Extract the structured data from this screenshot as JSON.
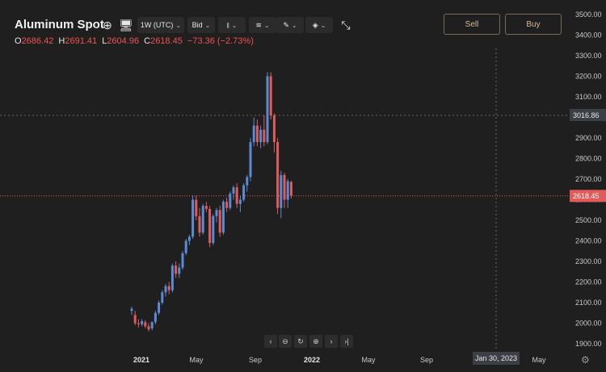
{
  "header": {
    "title": "Aluminum Spot",
    "interval_label": "1W (UTC)",
    "price_side_label": "Bid",
    "sell_label": "Sell",
    "buy_label": "Buy"
  },
  "ohlc": {
    "o_label": "O",
    "o_value": "2686.42",
    "h_label": "H",
    "h_value": "2691.41",
    "l_label": "L",
    "l_value": "2604.96",
    "c_label": "C",
    "c_value": "2618.45",
    "change": "−73.36 (−2.73%)"
  },
  "colors": {
    "up": "#5b8ad6",
    "down": "#e15b5b",
    "background": "#1f1f1f",
    "price_line": "#e15b5b"
  },
  "chart_data": {
    "type": "candlestick",
    "title": "Aluminum Spot",
    "y_axis": {
      "ticks": [
        "3500.00",
        "3400.00",
        "3300.00",
        "3200.00",
        "3100.00",
        "3000.00",
        "2900.00",
        "2800.00",
        "2700.00",
        "2600.00",
        "2500.00",
        "2400.00",
        "2300.00",
        "2200.00",
        "2100.00",
        "2000.00",
        "1900.00"
      ],
      "range": [
        1870,
        3550
      ],
      "position": "right"
    },
    "x_axis": {
      "ticks": [
        {
          "label": "2021",
          "bold": true
        },
        {
          "label": "May",
          "bold": false
        },
        {
          "label": "Sep",
          "bold": false
        },
        {
          "label": "2022",
          "bold": true
        },
        {
          "label": "May",
          "bold": false
        },
        {
          "label": "Sep",
          "bold": false
        },
        {
          "label": "May",
          "bold": false
        }
      ]
    },
    "crosshair": {
      "price_label": "3016.86",
      "date_label": "Jan 30, 2023"
    },
    "last_price_label": "2618.45",
    "grid": false,
    "candles": [
      {
        "o": 2060,
        "h": 2080,
        "l": 2040,
        "c": 2070
      },
      {
        "o": 2040,
        "h": 2060,
        "l": 1990,
        "c": 2000
      },
      {
        "o": 2000,
        "h": 2020,
        "l": 1980,
        "c": 1995
      },
      {
        "o": 1995,
        "h": 2020,
        "l": 1985,
        "c": 2010
      },
      {
        "o": 2005,
        "h": 2015,
        "l": 1975,
        "c": 1985
      },
      {
        "o": 1985,
        "h": 2000,
        "l": 1960,
        "c": 1970
      },
      {
        "o": 1975,
        "h": 2010,
        "l": 1965,
        "c": 2005
      },
      {
        "o": 2005,
        "h": 2060,
        "l": 1995,
        "c": 2050
      },
      {
        "o": 2050,
        "h": 2110,
        "l": 2040,
        "c": 2100
      },
      {
        "o": 2100,
        "h": 2160,
        "l": 2090,
        "c": 2150
      },
      {
        "o": 2150,
        "h": 2190,
        "l": 2130,
        "c": 2180
      },
      {
        "o": 2180,
        "h": 2200,
        "l": 2140,
        "c": 2160
      },
      {
        "o": 2160,
        "h": 2290,
        "l": 2150,
        "c": 2280
      },
      {
        "o": 2280,
        "h": 2300,
        "l": 2220,
        "c": 2240
      },
      {
        "o": 2240,
        "h": 2290,
        "l": 2220,
        "c": 2270
      },
      {
        "o": 2270,
        "h": 2350,
        "l": 2260,
        "c": 2340
      },
      {
        "o": 2340,
        "h": 2410,
        "l": 2330,
        "c": 2400
      },
      {
        "o": 2400,
        "h": 2430,
        "l": 2380,
        "c": 2420
      },
      {
        "o": 2420,
        "h": 2620,
        "l": 2410,
        "c": 2600
      },
      {
        "o": 2600,
        "h": 2620,
        "l": 2500,
        "c": 2520
      },
      {
        "o": 2520,
        "h": 2560,
        "l": 2420,
        "c": 2440
      },
      {
        "o": 2440,
        "h": 2580,
        "l": 2430,
        "c": 2570
      },
      {
        "o": 2570,
        "h": 2590,
        "l": 2540,
        "c": 2555
      },
      {
        "o": 2555,
        "h": 2570,
        "l": 2370,
        "c": 2390
      },
      {
        "o": 2390,
        "h": 2530,
        "l": 2380,
        "c": 2520
      },
      {
        "o": 2520,
        "h": 2560,
        "l": 2490,
        "c": 2550
      },
      {
        "o": 2550,
        "h": 2570,
        "l": 2420,
        "c": 2440
      },
      {
        "o": 2440,
        "h": 2600,
        "l": 2430,
        "c": 2590
      },
      {
        "o": 2590,
        "h": 2610,
        "l": 2540,
        "c": 2560
      },
      {
        "o": 2560,
        "h": 2640,
        "l": 2550,
        "c": 2630
      },
      {
        "o": 2630,
        "h": 2670,
        "l": 2600,
        "c": 2660
      },
      {
        "o": 2660,
        "h": 2680,
        "l": 2560,
        "c": 2580
      },
      {
        "o": 2580,
        "h": 2620,
        "l": 2540,
        "c": 2600
      },
      {
        "o": 2600,
        "h": 2680,
        "l": 2590,
        "c": 2670
      },
      {
        "o": 2670,
        "h": 2720,
        "l": 2640,
        "c": 2710
      },
      {
        "o": 2710,
        "h": 2900,
        "l": 2690,
        "c": 2880
      },
      {
        "o": 2880,
        "h": 3000,
        "l": 2860,
        "c": 2960
      },
      {
        "o": 2960,
        "h": 2990,
        "l": 2860,
        "c": 2880
      },
      {
        "o": 2880,
        "h": 2960,
        "l": 2850,
        "c": 2940
      },
      {
        "o": 2940,
        "h": 3010,
        "l": 2860,
        "c": 2880
      },
      {
        "o": 2880,
        "h": 3220,
        "l": 2870,
        "c": 3200
      },
      {
        "o": 3200,
        "h": 3220,
        "l": 2990,
        "c": 3010
      },
      {
        "o": 3010,
        "h": 3020,
        "l": 2830,
        "c": 2880
      },
      {
        "o": 2880,
        "h": 2900,
        "l": 2530,
        "c": 2560
      },
      {
        "o": 2560,
        "h": 2740,
        "l": 2510,
        "c": 2720
      },
      {
        "o": 2720,
        "h": 2730,
        "l": 2560,
        "c": 2600
      },
      {
        "o": 2600,
        "h": 2700,
        "l": 2560,
        "c": 2690
      },
      {
        "o": 2686.42,
        "h": 2691.41,
        "l": 2604.96,
        "c": 2618.45
      }
    ]
  }
}
